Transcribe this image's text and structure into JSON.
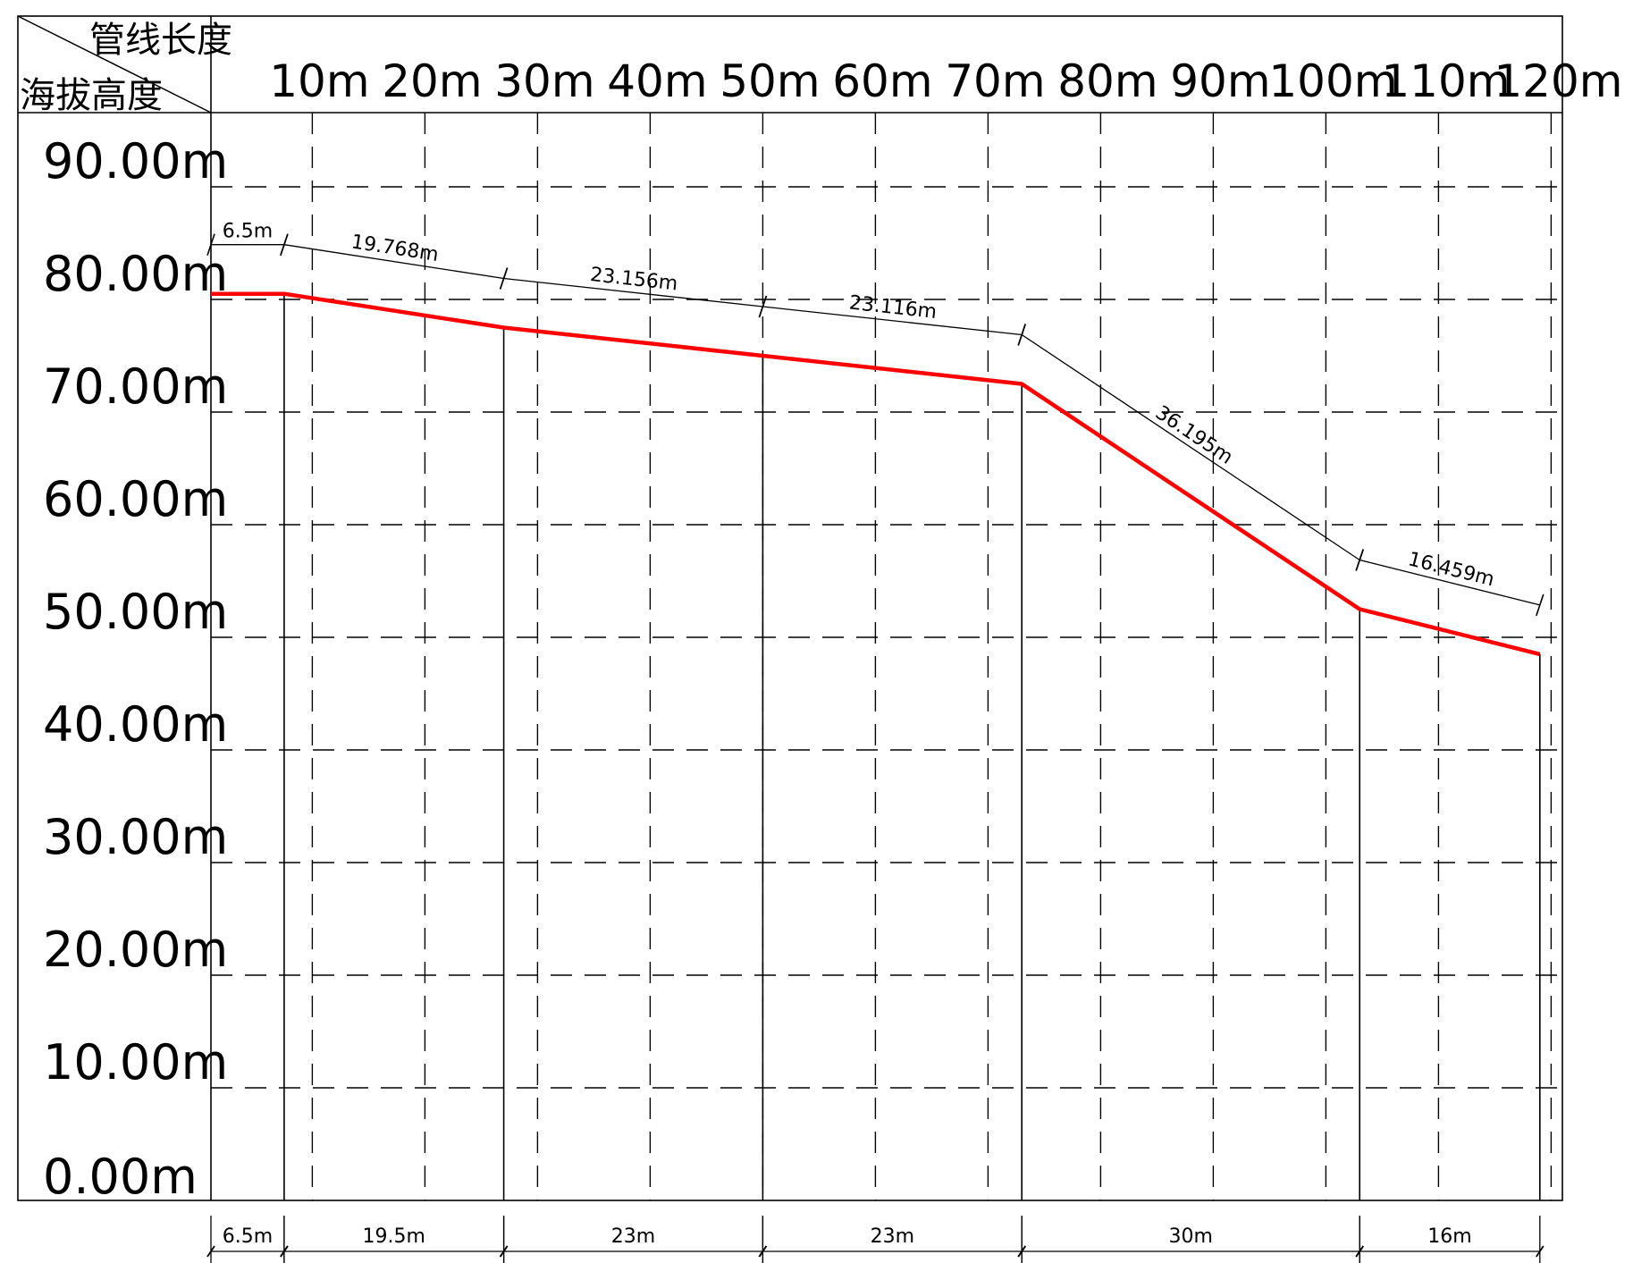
{
  "header": {
    "corner_top_label": "管线长度",
    "corner_bottom_label": "海拔高度"
  },
  "chart_data": {
    "type": "line",
    "x_ticks": [
      {
        "value": 10,
        "label": "10m"
      },
      {
        "value": 20,
        "label": "20m"
      },
      {
        "value": 30,
        "label": "30m"
      },
      {
        "value": 40,
        "label": "40m"
      },
      {
        "value": 50,
        "label": "50m"
      },
      {
        "value": 60,
        "label": "60m"
      },
      {
        "value": 70,
        "label": "70m"
      },
      {
        "value": 80,
        "label": "80m"
      },
      {
        "value": 90,
        "label": "90m"
      },
      {
        "value": 100,
        "label": "100m"
      },
      {
        "value": 110,
        "label": "110m"
      },
      {
        "value": 120,
        "label": "120m"
      }
    ],
    "y_ticks": [
      {
        "value": 0,
        "label": "0.00m"
      },
      {
        "value": 10,
        "label": "10.00m"
      },
      {
        "value": 20,
        "label": "20.00m"
      },
      {
        "value": 30,
        "label": "30.00m"
      },
      {
        "value": 40,
        "label": "40.00m"
      },
      {
        "value": 50,
        "label": "50.00m"
      },
      {
        "value": 60,
        "label": "60.00m"
      },
      {
        "value": 70,
        "label": "70.00m"
      },
      {
        "value": 80,
        "label": "80.00m"
      },
      {
        "value": 90,
        "label": "90.00m"
      }
    ],
    "xlim": [
      0,
      120
    ],
    "ylim": [
      0,
      96
    ],
    "grid": true,
    "series": [
      {
        "color": "#ff0000",
        "points": [
          {
            "x": 0,
            "y": 80.5
          },
          {
            "x": 6.5,
            "y": 80.5
          },
          {
            "x": 26,
            "y": 77.5
          },
          {
            "x": 49,
            "y": 75
          },
          {
            "x": 72,
            "y": 72.5
          },
          {
            "x": 102,
            "y": 52.5
          },
          {
            "x": 118,
            "y": 48.5
          }
        ]
      }
    ],
    "pipe_length_labels": [
      "6.5m",
      "19.768m",
      "23.156m",
      "23.116m",
      "36.195m",
      "16.459m"
    ],
    "horizontal_segment_labels": [
      "6.5m",
      "19.5m",
      "23m",
      "23m",
      "30m",
      "16m"
    ]
  }
}
